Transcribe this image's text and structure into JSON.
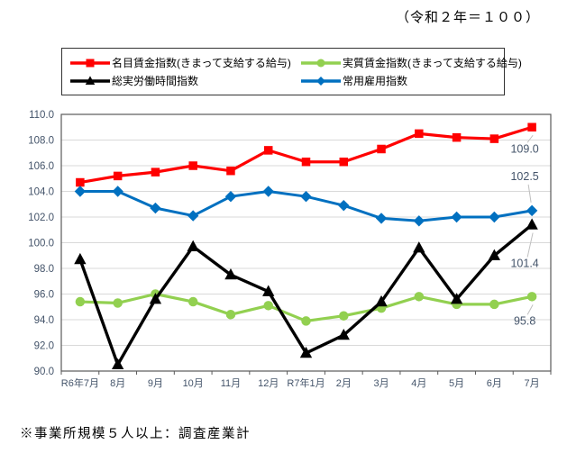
{
  "title": "（令和２年＝１００）",
  "footnote": "※事業所規模５人以上：調査産業計",
  "colors": {
    "nominal_wage": "#FF0000",
    "real_wage": "#92D050",
    "total_hours": "#000000",
    "employment": "#0070C0",
    "gridline": "#D9D9D9",
    "plot_border": "#595959",
    "axis_text": "#44546A",
    "data_label_text": "#44546A",
    "leader_line": "#BFBFBF"
  },
  "chart_data": {
    "type": "line",
    "title": "（令和２年＝１００）",
    "xlabel": "",
    "ylabel": "",
    "ylim": [
      90.0,
      110.0
    ],
    "ytick_step": 2.0,
    "grid": true,
    "legend_position": "top",
    "categories": [
      "R6年7月",
      "8月",
      "9月",
      "10月",
      "11月",
      "12月",
      "R7年1月",
      "2月",
      "3月",
      "4月",
      "5月",
      "6月",
      "7月"
    ],
    "series": [
      {
        "key": "nominal-wage-index",
        "name": "名目賃金指数(きまって支給する給与)",
        "color": "#FF0000",
        "marker": "square",
        "values": [
          104.7,
          105.2,
          105.5,
          106.0,
          105.6,
          107.2,
          106.3,
          106.3,
          107.3,
          108.5,
          108.2,
          108.1,
          109.0
        ]
      },
      {
        "key": "real-wage-index",
        "name": "実質賃金指数(きまって支給する給与)",
        "color": "#92D050",
        "marker": "circle",
        "values": [
          95.4,
          95.3,
          96.0,
          95.4,
          94.4,
          95.1,
          93.9,
          94.3,
          94.9,
          95.8,
          95.2,
          95.2,
          95.8
        ]
      },
      {
        "key": "total-hours-index",
        "name": "総実労働時間指数",
        "color": "#000000",
        "marker": "triangle",
        "values": [
          98.7,
          90.5,
          95.6,
          99.7,
          97.5,
          96.2,
          91.4,
          92.8,
          95.4,
          99.6,
          95.6,
          99.0,
          101.4
        ]
      },
      {
        "key": "regular-employment-index",
        "name": "常用雇用指数",
        "color": "#0070C0",
        "marker": "diamond",
        "values": [
          104.0,
          104.0,
          102.7,
          102.1,
          103.6,
          104.0,
          103.6,
          102.9,
          101.9,
          101.7,
          102.0,
          102.0,
          102.5
        ]
      }
    ],
    "end_labels": [
      {
        "series_index": 0,
        "text": "109.0"
      },
      {
        "series_index": 3,
        "text": "102.5"
      },
      {
        "series_index": 2,
        "text": "101.4"
      },
      {
        "series_index": 1,
        "text": "95.8"
      }
    ]
  }
}
